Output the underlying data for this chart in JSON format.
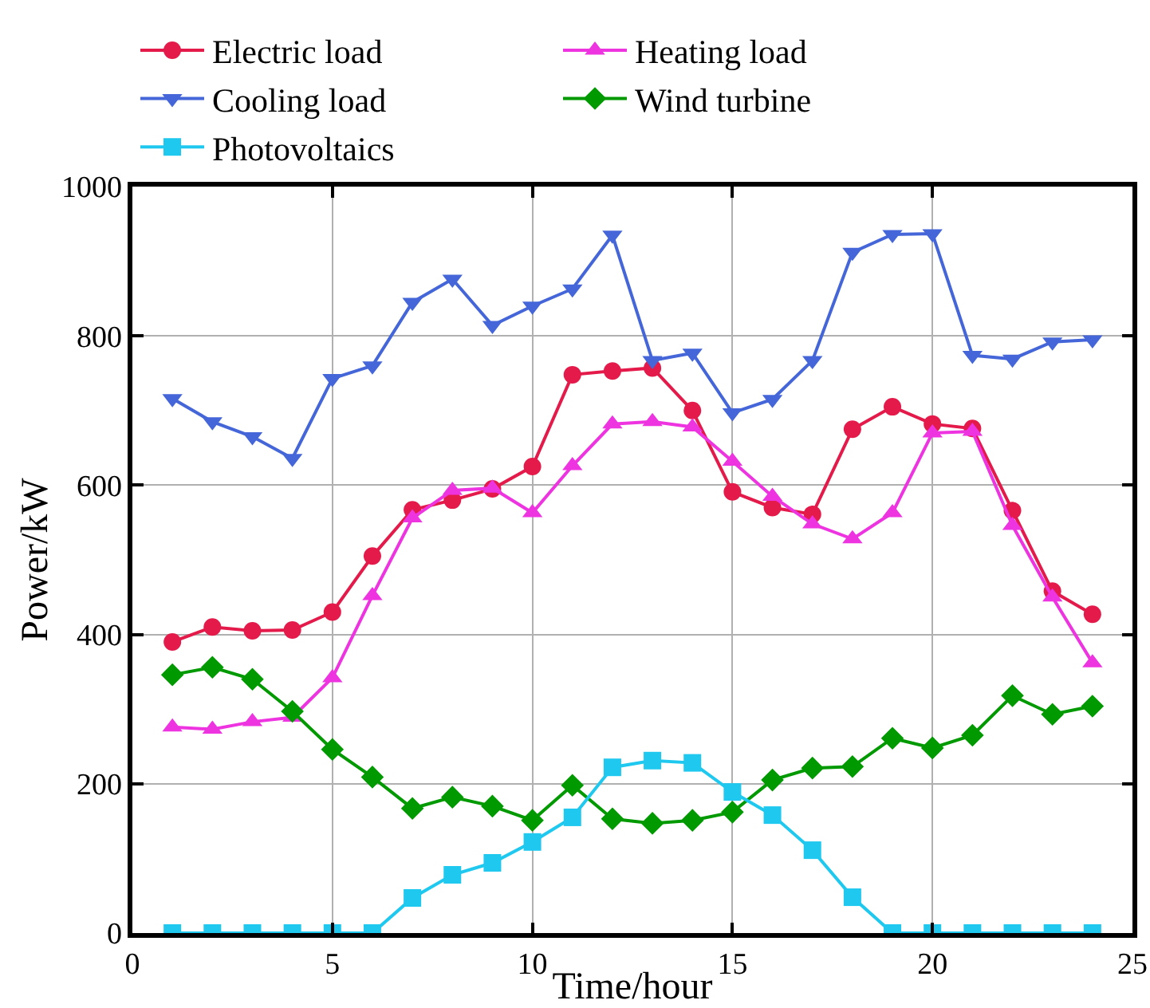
{
  "chart_data": {
    "type": "line",
    "xlabel": "Time/hour",
    "ylabel": "Power/kW",
    "x": [
      1,
      2,
      3,
      4,
      5,
      6,
      7,
      8,
      9,
      10,
      11,
      12,
      13,
      14,
      15,
      16,
      17,
      18,
      19,
      20,
      21,
      22,
      23,
      24
    ],
    "xlim": [
      0,
      25
    ],
    "xticks": [
      0,
      5,
      10,
      15,
      20,
      25
    ],
    "ylim": [
      0,
      1000
    ],
    "yticks": [
      0,
      200,
      400,
      600,
      800,
      1000
    ],
    "grid": true,
    "legend": "top",
    "line_style": "solid",
    "series": [
      {
        "name": "Electric load",
        "color": "#e31a4a",
        "marker": "circle",
        "values": [
          390,
          410,
          405,
          406,
          430,
          505,
          567,
          580,
          595,
          625,
          748,
          753,
          757,
          700,
          591,
          570,
          561,
          675,
          705,
          682,
          676,
          566,
          458,
          427
        ]
      },
      {
        "name": "Heating load",
        "color": "#ee33e0",
        "marker": "triangle",
        "values": [
          276,
          273,
          283,
          289,
          342,
          452,
          556,
          593,
          596,
          563,
          626,
          682,
          685,
          678,
          632,
          585,
          548,
          528,
          563,
          670,
          672,
          546,
          450,
          362
        ]
      },
      {
        "name": "Cooling load",
        "color": "#4466d8",
        "marker": "triangle-down",
        "values": [
          716,
          685,
          665,
          636,
          743,
          760,
          845,
          876,
          814,
          840,
          863,
          935,
          767,
          777,
          697,
          715,
          767,
          912,
          936,
          937,
          774,
          769,
          792,
          795
        ]
      },
      {
        "name": "Wind turbine",
        "color": "#009a00",
        "marker": "diamond",
        "values": [
          346,
          356,
          340,
          297,
          246,
          209,
          167,
          182,
          170,
          151,
          198,
          153,
          147,
          151,
          162,
          205,
          221,
          223,
          261,
          248,
          265,
          318,
          293,
          304
        ]
      },
      {
        "name": "Photovoltaics",
        "color": "#1ec8ee",
        "marker": "square",
        "values": [
          0,
          0,
          0,
          0,
          0,
          0,
          47,
          78,
          94,
          122,
          155,
          222,
          231,
          228,
          189,
          158,
          111,
          48,
          0,
          0,
          0,
          0,
          0,
          0
        ]
      }
    ]
  }
}
